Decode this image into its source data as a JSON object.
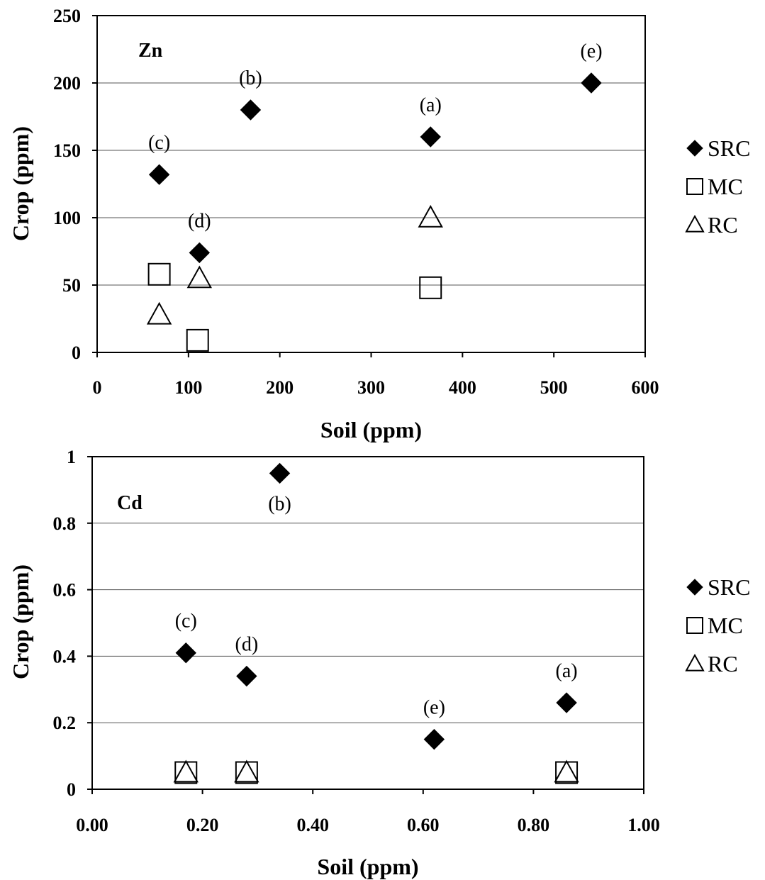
{
  "chart_data": [
    {
      "type": "scatter",
      "panel_label": "Zn",
      "xlabel": "Soil (ppm)",
      "ylabel": "Crop (ppm)",
      "xlim": [
        0,
        600
      ],
      "ylim": [
        0,
        250
      ],
      "xticks": [
        "0",
        "100",
        "200",
        "300",
        "400",
        "500",
        "600"
      ],
      "yticks": [
        "0",
        "50",
        "100",
        "150",
        "200",
        "250"
      ],
      "grid": "horizontal",
      "legend_placement": "right",
      "series": [
        {
          "name": "SRC",
          "marker": "filled-diamond",
          "points": [
            {
              "x": 365,
              "y": 160,
              "label": "(a)"
            },
            {
              "x": 168,
              "y": 180,
              "label": "(b)"
            },
            {
              "x": 68,
              "y": 132,
              "label": "(c)"
            },
            {
              "x": 112,
              "y": 74,
              "label": "(d)"
            },
            {
              "x": 541,
              "y": 200,
              "label": "(e)"
            }
          ]
        },
        {
          "name": "MC",
          "marker": "open-square",
          "points": [
            {
              "x": 68,
              "y": 58
            },
            {
              "x": 110,
              "y": 9
            },
            {
              "x": 365,
              "y": 48
            }
          ]
        },
        {
          "name": "RC",
          "marker": "open-triangle",
          "points": [
            {
              "x": 68,
              "y": 28
            },
            {
              "x": 112,
              "y": 55
            },
            {
              "x": 365,
              "y": 100
            }
          ]
        }
      ]
    },
    {
      "type": "scatter",
      "panel_label": "Cd",
      "xlabel": "Soil (ppm)",
      "ylabel": "Crop (ppm)",
      "xlim": [
        0,
        1
      ],
      "ylim": [
        0,
        1
      ],
      "xticks": [
        "0.00",
        "0.20",
        "0.40",
        "0.60",
        "0.80",
        "1.00"
      ],
      "yticks": [
        "0",
        "0.2",
        "0.4",
        "0.6",
        "0.8",
        "1"
      ],
      "grid": "horizontal",
      "legend_placement": "right",
      "series": [
        {
          "name": "SRC",
          "marker": "filled-diamond",
          "points": [
            {
              "x": 0.86,
              "y": 0.26,
              "label": "(a)"
            },
            {
              "x": 0.34,
              "y": 0.95,
              "label": "(b)"
            },
            {
              "x": 0.17,
              "y": 0.41,
              "label": "(c)"
            },
            {
              "x": 0.28,
              "y": 0.34,
              "label": "(d)"
            },
            {
              "x": 0.62,
              "y": 0.15,
              "label": "(e)"
            }
          ]
        },
        {
          "name": "MC",
          "marker": "open-square",
          "points": [
            {
              "x": 0.17,
              "y": 0.05
            },
            {
              "x": 0.28,
              "y": 0.05
            },
            {
              "x": 0.86,
              "y": 0.05
            }
          ]
        },
        {
          "name": "RC",
          "marker": "open-triangle",
          "points": [
            {
              "x": 0.17,
              "y": 0.05
            },
            {
              "x": 0.28,
              "y": 0.05
            },
            {
              "x": 0.86,
              "y": 0.05
            }
          ]
        }
      ]
    }
  ]
}
